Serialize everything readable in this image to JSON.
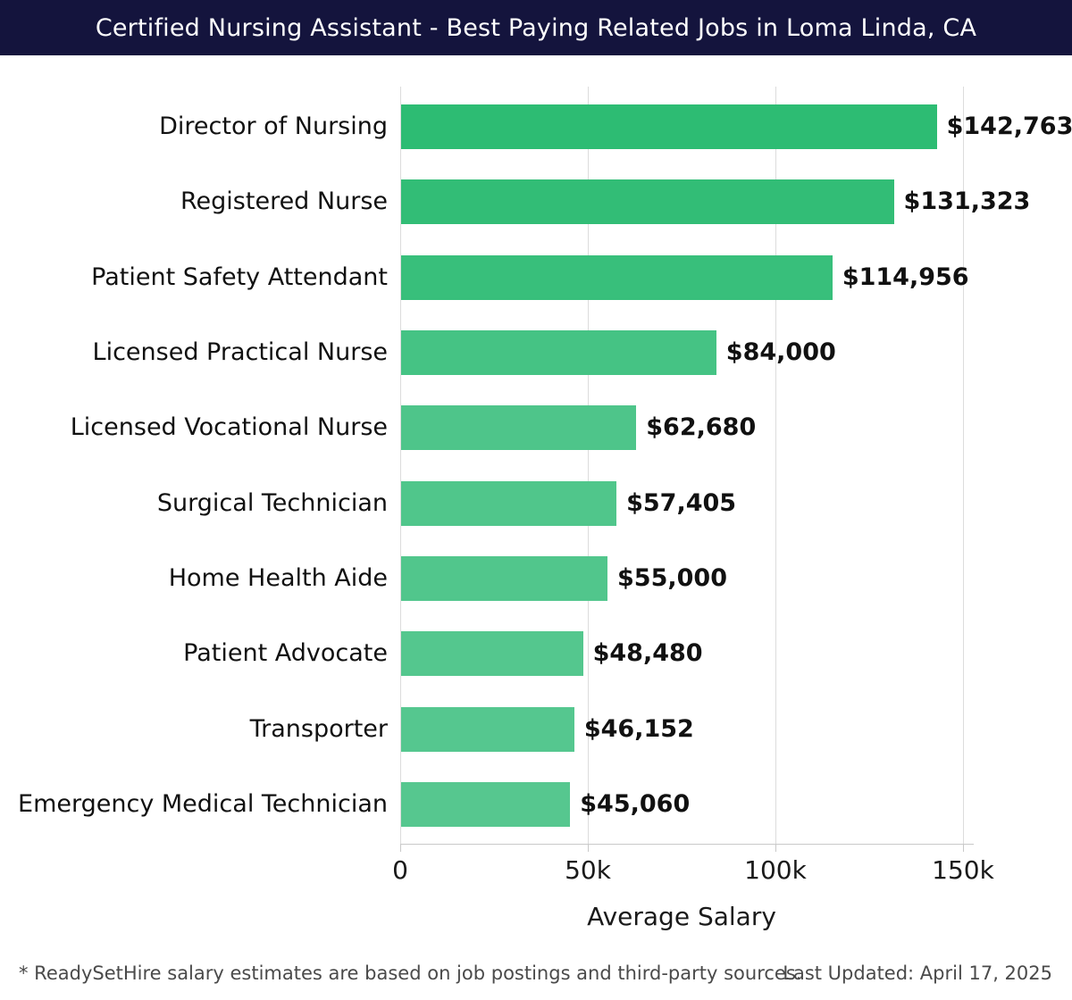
{
  "header": {
    "title": "Certified Nursing Assistant - Best Paying Related Jobs in Loma Linda, CA",
    "bg_color": "#14143d",
    "text_color": "#ffffff"
  },
  "chart_data": {
    "type": "bar",
    "orientation": "horizontal",
    "title": "Certified Nursing Assistant - Best Paying Related Jobs in Loma Linda, CA",
    "xlabel": "Average Salary",
    "ylabel": "",
    "xlim": [
      0,
      150000
    ],
    "grid": true,
    "gridline_color": "#dcdcdc",
    "axis_color": "#c9c9c9",
    "categories": [
      "Director of Nursing",
      "Registered Nurse",
      "Patient Safety Attendant",
      "Licensed Practical Nurse",
      "Licensed Vocational Nurse",
      "Surgical Technician",
      "Home Health Aide",
      "Patient Advocate",
      "Transporter",
      "Emergency Medical Technician"
    ],
    "values": [
      142763,
      131323,
      114956,
      84000,
      62680,
      57405,
      55000,
      48480,
      46152,
      45060
    ],
    "value_labels": [
      "$142,763",
      "$131,323",
      "$114,956",
      "$84,000",
      "$62,680",
      "$57,405",
      "$55,000",
      "$48,480",
      "$46,152",
      "$45,060"
    ],
    "bar_colors": [
      "#2dbc73",
      "#32bd76",
      "#38bf7b",
      "#45c384",
      "#4ec58a",
      "#50c68b",
      "#51c68c",
      "#54c78e",
      "#55c78f",
      "#56c78f"
    ],
    "x_ticks": [
      {
        "value": 0,
        "label": "0"
      },
      {
        "value": 50000,
        "label": "50k"
      },
      {
        "value": 100000,
        "label": "100k"
      },
      {
        "value": 150000,
        "label": "150k"
      }
    ]
  },
  "footer": {
    "note": "* ReadySetHire salary estimates are based on job postings and third-party sources.",
    "last_updated": "Last Updated: April 17, 2025"
  }
}
